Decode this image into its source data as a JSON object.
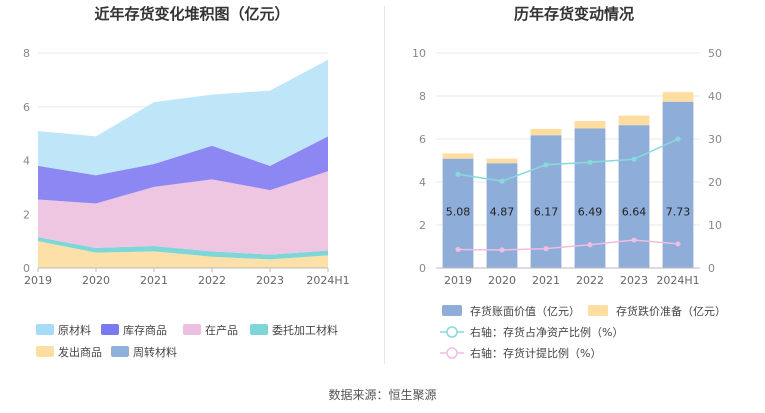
{
  "source": "数据来源：恒生聚源",
  "chart_data": [
    {
      "type": "area",
      "title": "近年存货变化堆积图（亿元）",
      "categories": [
        "2019",
        "2020",
        "2021",
        "2022",
        "2023",
        "2024H1"
      ],
      "ylim": [
        0,
        8
      ],
      "yticks": [
        0,
        2,
        4,
        6,
        8
      ],
      "grid": true,
      "stacked": true,
      "legend_position": "bottom",
      "series": [
        {
          "name": "周转材料",
          "color": "#8fb0dd",
          "values": [
            0.02,
            0.02,
            0.02,
            0.02,
            0.02,
            0.02
          ]
        },
        {
          "name": "发出商品",
          "color": "#fde0a8",
          "values": [
            0.98,
            0.55,
            0.6,
            0.4,
            0.3,
            0.45
          ]
        },
        {
          "name": "委托加工材料",
          "color": "#7fd6d9",
          "values": [
            0.15,
            0.18,
            0.2,
            0.2,
            0.18,
            0.18
          ]
        },
        {
          "name": "在产品",
          "color": "#efc6e2",
          "values": [
            1.4,
            1.65,
            2.2,
            2.68,
            2.4,
            2.95
          ]
        },
        {
          "name": "库存商品",
          "color": "#8c87f2",
          "values": [
            1.25,
            1.05,
            0.85,
            1.25,
            0.9,
            1.3
          ]
        },
        {
          "name": "原材料",
          "color": "#bfe5f8",
          "values": [
            1.3,
            1.45,
            2.3,
            1.9,
            2.8,
            2.85
          ]
        }
      ],
      "legend": [
        {
          "name": "原材料",
          "color": "#a6dcf7"
        },
        {
          "name": "库存商品",
          "color": "#7b79ef"
        },
        {
          "name": "在产品",
          "color": "#ecbfe0"
        },
        {
          "name": "委托加工材料",
          "color": "#7fd6d9"
        },
        {
          "name": "发出商品",
          "color": "#fddda0"
        },
        {
          "name": "周转材料",
          "color": "#8fb0dd"
        }
      ]
    },
    {
      "type": "bar",
      "title": "历年存货变动情况",
      "categories": [
        "2019",
        "2020",
        "2021",
        "2022",
        "2023",
        "2024H1"
      ],
      "ylim": [
        0,
        10
      ],
      "yticks": [
        0,
        2,
        4,
        6,
        8,
        10
      ],
      "y2lim": [
        0,
        50
      ],
      "y2ticks": [
        0,
        10,
        20,
        30,
        40,
        50
      ],
      "grid": true,
      "legend_position": "bottom",
      "series": [
        {
          "name": "存货账面价值（亿元）",
          "kind": "bar",
          "axis": "left",
          "color": "#8eadd9",
          "values": [
            5.08,
            4.87,
            6.17,
            6.49,
            6.64,
            7.73
          ],
          "labels": [
            "5.08",
            "4.87",
            "6.17",
            "6.49",
            "6.64",
            "7.73"
          ]
        },
        {
          "name": "存货跌价准备（亿元）",
          "kind": "bar-stack",
          "axis": "left",
          "color": "#fddda0",
          "values": [
            0.25,
            0.22,
            0.3,
            0.35,
            0.45,
            0.45
          ]
        },
        {
          "name": "右轴：存货占净资产比例（%）",
          "kind": "line",
          "axis": "right",
          "color": "#8ad9da",
          "values": [
            21.8,
            20.2,
            24.0,
            24.6,
            25.3,
            30.0
          ]
        },
        {
          "name": "右轴：存货计提比例（%）",
          "kind": "line",
          "axis": "right",
          "color": "#f0bde0",
          "values": [
            4.3,
            4.2,
            4.5,
            5.4,
            6.5,
            5.6
          ]
        }
      ]
    }
  ]
}
